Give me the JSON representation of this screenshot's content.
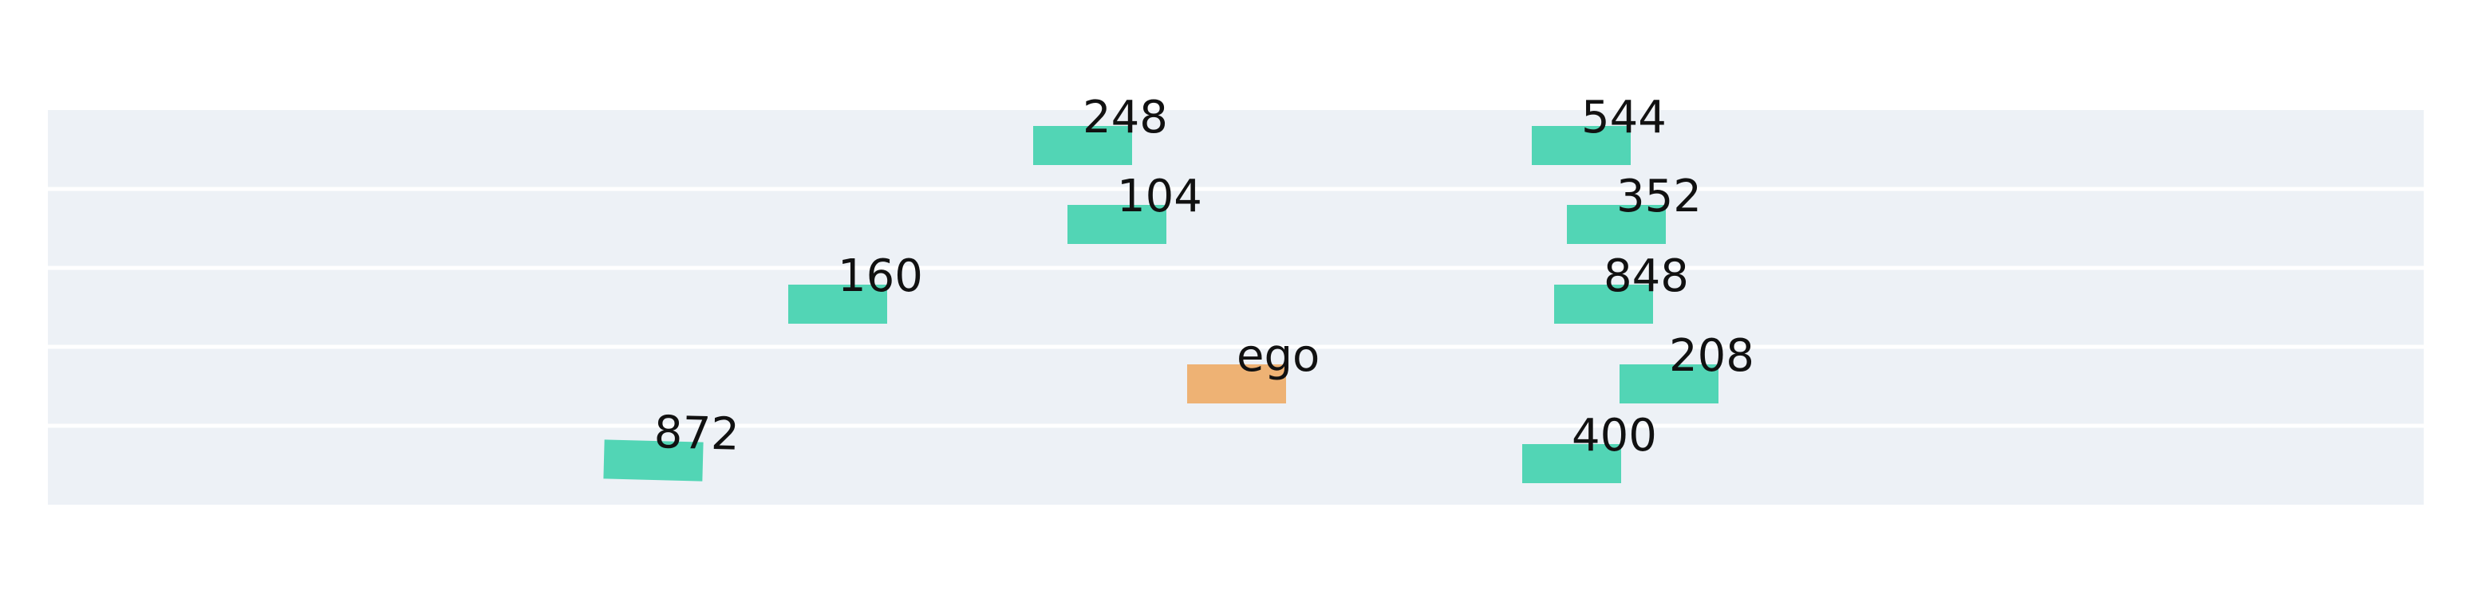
{
  "colors": {
    "background": "#ffffff",
    "lane": "#edf1f6",
    "lane_divider": "#ffffff",
    "vehicle": "#52d5b5",
    "ego": "#eeb274",
    "label": "#111111"
  },
  "lanes": [
    {
      "vehicles": [
        {
          "label": "248",
          "kind": "other"
        },
        {
          "label": "544",
          "kind": "other"
        }
      ]
    },
    {
      "vehicles": [
        {
          "label": "104",
          "kind": "other"
        },
        {
          "label": "352",
          "kind": "other"
        }
      ]
    },
    {
      "vehicles": [
        {
          "label": "160",
          "kind": "other"
        },
        {
          "label": "848",
          "kind": "other"
        }
      ]
    },
    {
      "vehicles": [
        {
          "label": "ego",
          "kind": "ego"
        },
        {
          "label": "208",
          "kind": "other"
        }
      ]
    },
    {
      "vehicles": [
        {
          "label": "872",
          "kind": "other"
        },
        {
          "label": "400",
          "kind": "other"
        }
      ]
    }
  ]
}
